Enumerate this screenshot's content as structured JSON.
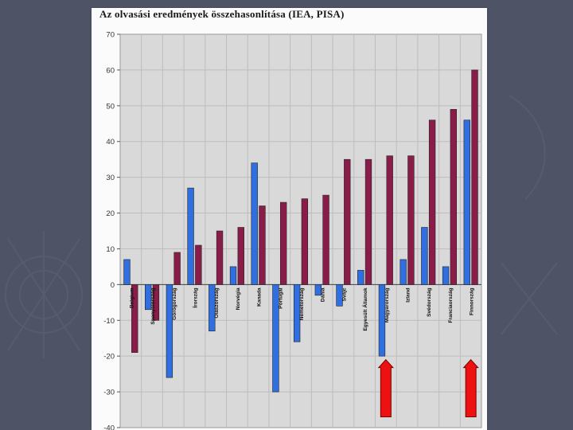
{
  "colors": {
    "background": "#4f5366",
    "series_a": "#2f6fe0",
    "series_b": "#8a1c4a",
    "plot_bg": "#d9d9d9",
    "arrow": "#ee1111"
  },
  "chart_data": {
    "type": "bar",
    "title": "Az olvasási eredmények összehasonlítása (IEA, PISA)",
    "xlabel": "",
    "ylabel": "",
    "ylim": [
      -40,
      70
    ],
    "yticks": [
      70,
      60,
      50,
      40,
      30,
      20,
      10,
      0,
      -10,
      -20,
      -30,
      -40
    ],
    "grid": true,
    "legend": "none",
    "categories": [
      "Belgium",
      "Spanyolország",
      "Görögország",
      "Írország",
      "Olaszország",
      "Norvégia",
      "Kanada",
      "Portugál",
      "Németország",
      "Dánia",
      "Svájc",
      "Egyesült Államok",
      "Magyarország",
      "Izland",
      "Svédország",
      "Franciaország",
      "Finnország"
    ],
    "series": [
      {
        "values": [
          7,
          -7,
          -26,
          27,
          -13,
          5,
          34,
          -30,
          -16,
          -3,
          -6,
          4,
          -20,
          7,
          16,
          5,
          46
        ]
      },
      {
        "values": [
          -19,
          -10,
          9,
          11,
          15,
          16,
          22,
          23,
          24,
          25,
          35,
          35,
          36,
          36,
          46,
          49,
          60
        ]
      }
    ],
    "annotations": [
      {
        "type": "arrow-up",
        "category": "Magyarország"
      },
      {
        "type": "arrow-up",
        "category": "Finnország"
      }
    ]
  }
}
